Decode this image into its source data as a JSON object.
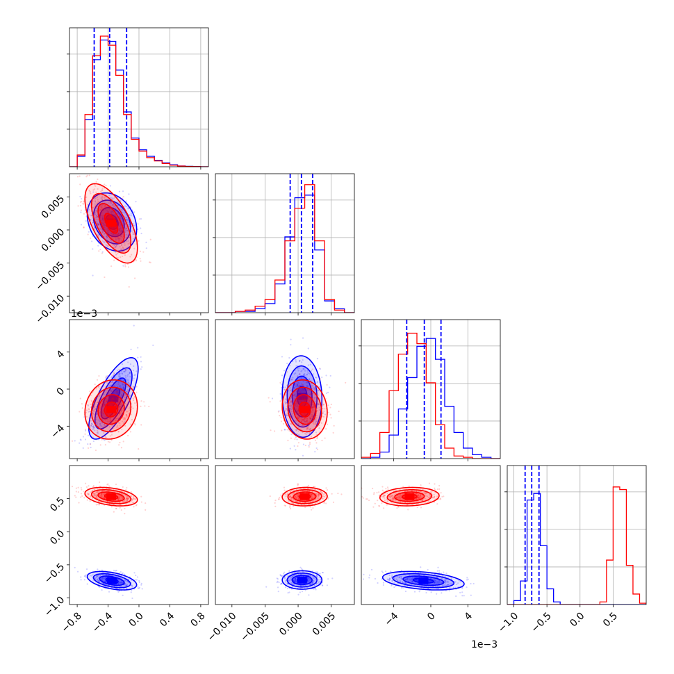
{
  "chart_data": {
    "type": "corner",
    "grid": true,
    "series": [
      {
        "name": "",
        "color": "#0000ff"
      },
      {
        "name": "",
        "color": "#ff0000"
      }
    ],
    "variables": [
      {
        "range": [
          -0.9,
          0.9
        ],
        "ticks": [
          -0.8,
          -0.4,
          0.0,
          0.4,
          0.8
        ],
        "tick_labels": [
          "−0.8",
          "−0.4",
          "0.0",
          "0.4",
          "0.8"
        ],
        "offset_label": ""
      },
      {
        "range": [
          -0.0125,
          0.0085
        ],
        "ticks": [
          -0.01,
          -0.005,
          0.0,
          0.005
        ],
        "tick_labels": [
          "−0.010",
          "−0.005",
          "0.000",
          "0.005"
        ],
        "offset_label": "1e−3"
      },
      {
        "range": [
          -7.5,
          7.5
        ],
        "ticks": [
          -4,
          0,
          4
        ],
        "tick_labels": [
          "−4",
          "0",
          "4"
        ],
        "offset_label": "1e−3"
      },
      {
        "range": [
          -1.1,
          1.0
        ],
        "ticks": [
          -1.0,
          -0.5,
          0.0,
          0.5
        ],
        "tick_labels": [
          "−1.0",
          "−0.5",
          "0.0",
          "0.5"
        ],
        "offset_label": ""
      }
    ],
    "diagonal": [
      {
        "edges": [
          -0.9,
          -0.8,
          -0.7,
          -0.6,
          -0.5,
          -0.4,
          -0.3,
          -0.2,
          -0.1,
          0.0,
          0.1,
          0.2,
          0.3,
          0.4,
          0.5,
          0.6,
          0.7,
          0.8,
          0.9
        ],
        "blue": [
          0.0,
          0.08,
          0.36,
          0.82,
          0.97,
          0.96,
          0.74,
          0.42,
          0.22,
          0.13,
          0.08,
          0.05,
          0.03,
          0.015,
          0.006,
          0.003,
          0.001,
          0.0
        ],
        "red": [
          0.0,
          0.09,
          0.4,
          0.85,
          1.0,
          0.93,
          0.7,
          0.4,
          0.21,
          0.12,
          0.07,
          0.045,
          0.025,
          0.012,
          0.005,
          0.002,
          0.001,
          0.0
        ],
        "quantiles": [
          -0.58,
          -0.38,
          -0.16
        ]
      },
      {
        "edges": [
          -0.0125,
          -0.011,
          -0.0095,
          -0.008,
          -0.0065,
          -0.005,
          -0.0035,
          -0.002,
          -0.0005,
          0.001,
          0.0025,
          0.004,
          0.0055,
          0.007,
          0.0085
        ],
        "blue": [
          0.0,
          0.0,
          0.01,
          0.01,
          0.03,
          0.07,
          0.22,
          0.58,
          0.88,
          0.9,
          0.48,
          0.09,
          0.03,
          0.0
        ],
        "red": [
          0.0,
          0.0,
          0.01,
          0.02,
          0.05,
          0.1,
          0.25,
          0.55,
          0.8,
          0.98,
          0.55,
          0.1,
          0.02,
          0.0
        ],
        "quantiles": [
          -0.0012,
          0.0005,
          0.0022
        ]
      },
      {
        "edges": [
          -7.5,
          -6.5,
          -5.5,
          -4.5,
          -3.5,
          -2.5,
          -1.5,
          -0.5,
          0.5,
          1.5,
          2.5,
          3.5,
          4.5,
          5.5,
          6.5,
          7.5
        ],
        "blue": [
          0.0,
          0.01,
          0.05,
          0.18,
          0.38,
          0.62,
          0.86,
          0.92,
          0.76,
          0.4,
          0.2,
          0.08,
          0.03,
          0.01,
          0.0
        ],
        "red": [
          0.01,
          0.04,
          0.2,
          0.52,
          0.8,
          0.96,
          0.88,
          0.58,
          0.26,
          0.08,
          0.02,
          0.01,
          0.0,
          0.0,
          0.0
        ],
        "quantiles": [
          -2.6,
          -0.7,
          1.1
        ]
      },
      {
        "edges": [
          -1.1,
          -1.0,
          -0.9,
          -0.8,
          -0.7,
          -0.6,
          -0.5,
          -0.4,
          -0.3,
          -0.2,
          -0.1,
          0.0,
          0.1,
          0.2,
          0.3,
          0.4,
          0.5,
          0.6,
          0.7,
          0.8,
          0.9,
          1.0
        ],
        "blue": [
          0.0,
          0.03,
          0.18,
          0.8,
          0.85,
          0.45,
          0.12,
          0.02,
          0.0,
          0.0,
          0.0,
          0.0,
          0.0,
          0.0,
          0.0,
          0.0,
          0.0,
          0.0,
          0.0,
          0.0,
          0.0
        ],
        "red": [
          0.0,
          0.0,
          0.0,
          0.0,
          0.0,
          0.0,
          0.0,
          0.0,
          0.0,
          0.0,
          0.0,
          0.0,
          0.0,
          0.0,
          0.02,
          0.34,
          0.9,
          0.88,
          0.3,
          0.08,
          0.01
        ],
        "quantiles": [
          -0.83,
          -0.73,
          -0.62
        ]
      }
    ],
    "pairs": [
      {
        "row": 1,
        "col": 0,
        "blue": {
          "mean": [
            -0.35,
            0.0012
          ],
          "sd": [
            0.16,
            0.0022
          ],
          "rho": -0.25
        },
        "red": {
          "mean": [
            -0.36,
            0.001
          ],
          "sd": [
            0.17,
            0.003
          ],
          "rho": -0.62
        }
      },
      {
        "row": 2,
        "col": 0,
        "blue": {
          "mean": [
            -0.33,
            -1.0
          ],
          "sd": [
            0.16,
            2.2
          ],
          "rho": 0.72
        },
        "red": {
          "mean": [
            -0.36,
            -2.2
          ],
          "sd": [
            0.17,
            1.6
          ],
          "rho": 0.1
        }
      },
      {
        "row": 2,
        "col": 1,
        "blue": {
          "mean": [
            0.0006,
            -0.8
          ],
          "sd": [
            0.0015,
            2.2
          ],
          "rho": -0.05
        },
        "red": {
          "mean": [
            0.001,
            -2.2
          ],
          "sd": [
            0.0017,
            1.6
          ],
          "rho": -0.1
        }
      },
      {
        "row": 3,
        "col": 0,
        "blue": {
          "mean": [
            -0.35,
            -0.74
          ],
          "sd": [
            0.16,
            0.07
          ],
          "rho": -0.45
        },
        "red": {
          "mean": [
            -0.36,
            0.53
          ],
          "sd": [
            0.17,
            0.07
          ],
          "rho": -0.35
        }
      },
      {
        "row": 3,
        "col": 1,
        "blue": {
          "mean": [
            0.0006,
            -0.73
          ],
          "sd": [
            0.0015,
            0.07
          ],
          "rho": 0.0
        },
        "red": {
          "mean": [
            0.001,
            0.53
          ],
          "sd": [
            0.0017,
            0.07
          ],
          "rho": 0.05
        }
      },
      {
        "row": 3,
        "col": 2,
        "blue": {
          "mean": [
            -0.8,
            -0.74
          ],
          "sd": [
            2.2,
            0.07
          ],
          "rho": -0.35
        },
        "red": {
          "mean": [
            -2.3,
            0.53
          ],
          "sd": [
            1.6,
            0.07
          ],
          "rho": 0.1
        }
      }
    ]
  }
}
